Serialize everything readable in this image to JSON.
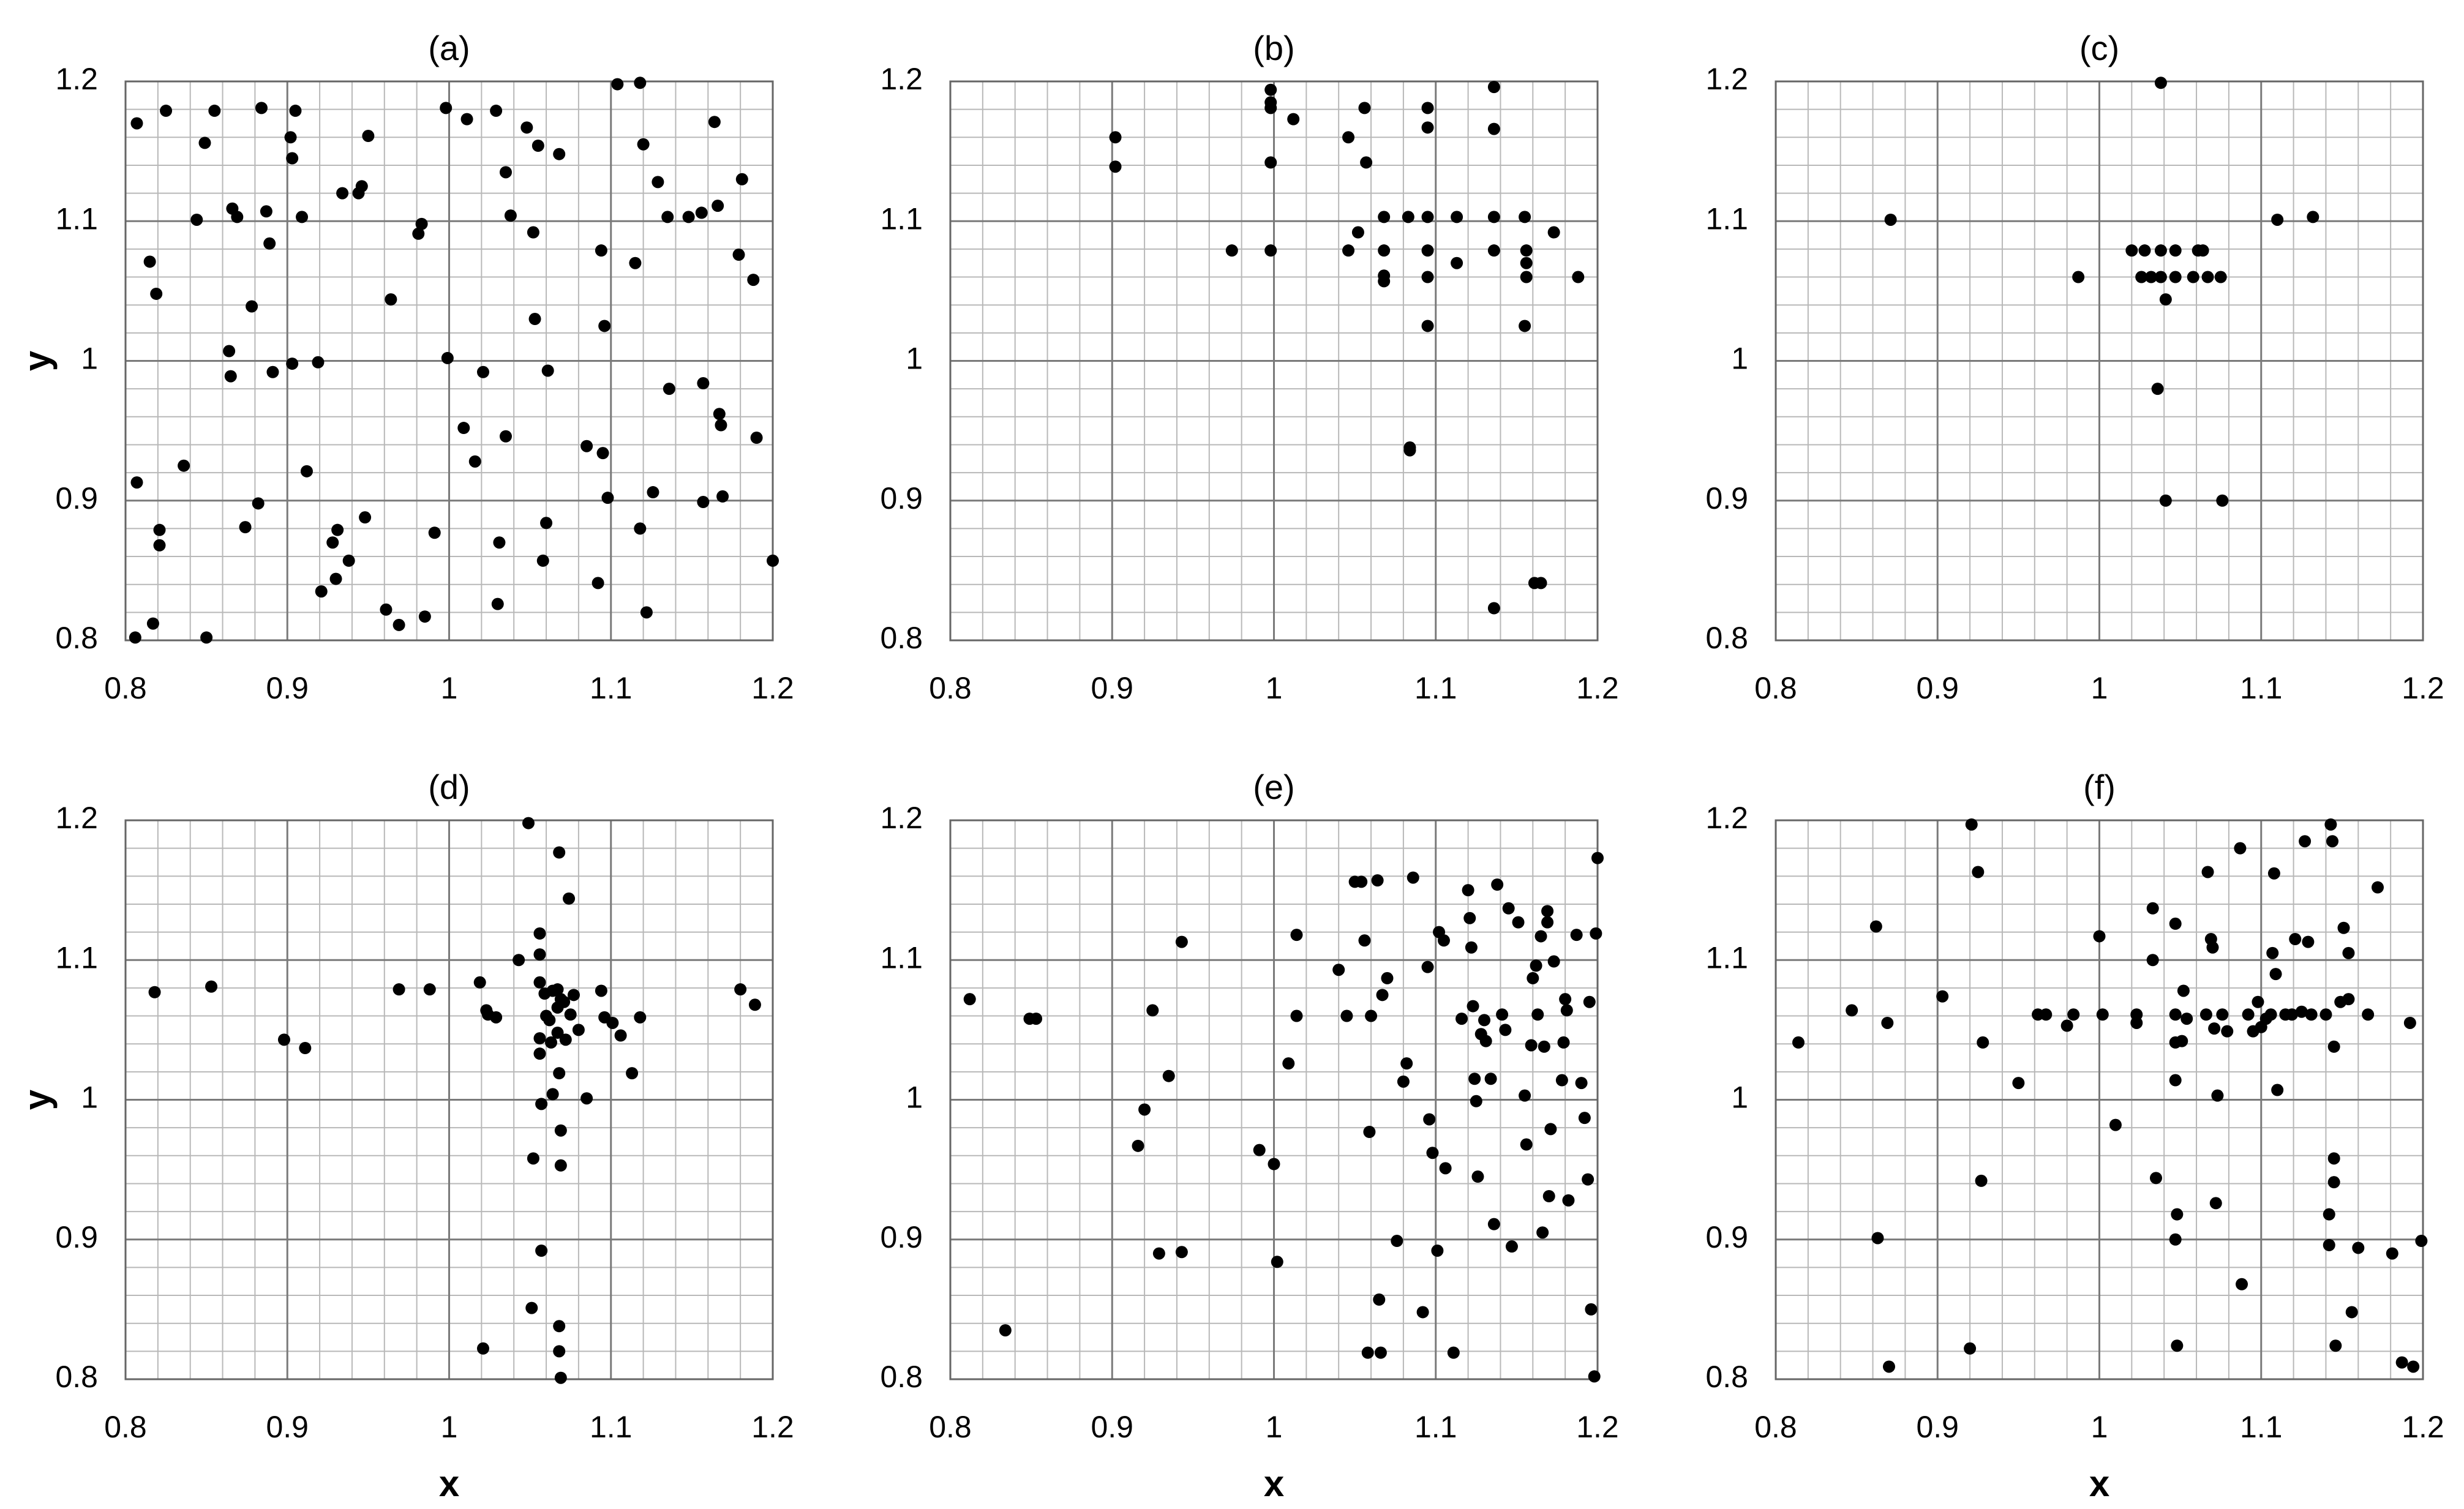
{
  "chart_data": [
    {
      "type": "scatter",
      "title": "(a)",
      "ylabel": "y",
      "color": "#000000",
      "grid": true,
      "xlim": [
        0.8,
        1.2
      ],
      "ylim": [
        0.8,
        1.2
      ],
      "xticks": [
        0.8,
        0.9,
        1,
        1.1,
        1.2
      ],
      "yticks": [
        0.8,
        0.9,
        1,
        1.1,
        1.2
      ],
      "x": [
        0.807,
        0.806,
        0.815,
        0.819,
        0.821,
        0.821,
        0.825,
        0.817,
        0.807,
        0.836,
        0.844,
        0.85,
        0.849,
        0.855,
        0.864,
        0.865,
        0.866,
        0.869,
        0.874,
        0.878,
        0.882,
        0.884,
        0.887,
        0.889,
        0.891,
        0.902,
        0.903,
        0.903,
        0.905,
        0.909,
        0.912,
        0.919,
        0.921,
        0.928,
        0.93,
        0.931,
        0.934,
        0.938,
        0.944,
        0.946,
        0.948,
        0.95,
        0.961,
        0.964,
        0.969,
        0.981,
        0.983,
        0.985,
        0.991,
        0.998,
        0.999,
        1.009,
        1.011,
        1.016,
        1.021,
        1.029,
        1.03,
        1.031,
        1.035,
        1.035,
        1.038,
        1.048,
        1.052,
        1.053,
        1.055,
        1.058,
        1.06,
        1.061,
        1.068,
        1.085,
        1.092,
        1.094,
        1.095,
        1.096,
        1.098,
        1.104,
        1.115,
        1.118,
        1.118,
        1.12,
        1.122,
        1.126,
        1.129,
        1.136,
        1.135,
        1.148,
        1.156,
        1.157,
        1.157,
        1.164,
        1.166,
        1.167,
        1.168,
        1.169,
        1.181,
        1.179,
        1.188,
        1.19,
        1.2
      ],
      "y": [
        1.17,
        0.802,
        1.071,
        1.048,
        0.879,
        0.868,
        1.179,
        0.812,
        0.913,
        0.925,
        1.101,
        0.802,
        1.156,
        1.179,
        1.007,
        0.989,
        1.109,
        1.103,
        0.881,
        1.039,
        0.898,
        1.181,
        1.107,
        1.084,
        0.992,
        1.16,
        1.145,
        0.998,
        1.179,
        1.103,
        0.921,
        0.999,
        0.835,
        0.87,
        0.844,
        0.879,
        1.12,
        0.857,
        1.12,
        1.125,
        0.888,
        1.161,
        0.822,
        1.044,
        0.811,
        1.091,
        1.098,
        0.817,
        0.877,
        1.181,
        1.002,
        0.952,
        1.173,
        0.928,
        0.992,
        1.179,
        0.826,
        0.87,
        0.946,
        1.135,
        1.104,
        1.167,
        1.092,
        1.03,
        1.154,
        0.857,
        0.884,
        0.993,
        1.148,
        0.939,
        0.841,
        1.079,
        0.934,
        1.025,
        0.902,
        1.198,
        1.07,
        1.199,
        0.88,
        1.155,
        0.82,
        0.906,
        1.128,
        0.98,
        1.103,
        1.103,
        1.106,
        0.899,
        0.984,
        1.171,
        1.111,
        0.962,
        0.954,
        0.903,
        1.13,
        1.076,
        1.058,
        0.945,
        0.857
      ]
    },
    {
      "type": "scatter",
      "title": "(b)",
      "color": "#000000",
      "grid": true,
      "xlim": [
        0.8,
        1.2
      ],
      "ylim": [
        0.8,
        1.2
      ],
      "xticks": [
        0.8,
        0.9,
        1,
        1.1,
        1.2
      ],
      "yticks": [
        0.8,
        0.9,
        1,
        1.1,
        1.2
      ],
      "x": [
        0.902,
        0.902,
        0.998,
        0.998,
        0.998,
        0.998,
        0.998,
        0.974,
        1.012,
        1.046,
        1.046,
        1.052,
        1.056,
        1.057,
        1.068,
        1.068,
        1.068,
        1.068,
        1.083,
        1.084,
        1.084,
        1.095,
        1.095,
        1.095,
        1.095,
        1.095,
        1.095,
        1.113,
        1.113,
        1.136,
        1.136,
        1.136,
        1.136,
        1.136,
        1.155,
        1.156,
        1.156,
        1.156,
        1.155,
        1.161,
        1.165,
        1.173,
        1.188
      ],
      "y": [
        1.16,
        1.139,
        1.194,
        1.185,
        1.181,
        1.142,
        1.079,
        1.079,
        1.173,
        1.16,
        1.079,
        1.092,
        1.181,
        1.142,
        1.103,
        1.079,
        1.061,
        1.057,
        1.103,
        0.938,
        0.936,
        1.103,
        1.079,
        1.06,
        1.025,
        1.167,
        1.181,
        1.103,
        1.07,
        1.196,
        1.166,
        1.103,
        1.079,
        0.823,
        1.103,
        1.079,
        1.07,
        1.06,
        1.025,
        0.841,
        0.841,
        1.092,
        1.06
      ]
    },
    {
      "type": "scatter",
      "title": "(c)",
      "color": "#000000",
      "grid": true,
      "xlim": [
        0.8,
        1.2
      ],
      "ylim": [
        0.8,
        1.2
      ],
      "xticks": [
        0.8,
        0.9,
        1,
        1.1,
        1.2
      ],
      "yticks": [
        0.8,
        0.9,
        1,
        1.1,
        1.2
      ],
      "x": [
        0.871,
        1.038,
        0.987,
        1.02,
        1.028,
        1.038,
        1.047,
        1.061,
        1.064,
        1.026,
        1.032,
        1.038,
        1.047,
        1.058,
        1.067,
        1.075,
        1.041,
        1.036,
        1.041,
        1.076,
        1.11,
        1.132
      ],
      "y": [
        1.101,
        1.199,
        1.06,
        1.079,
        1.079,
        1.079,
        1.079,
        1.079,
        1.079,
        1.06,
        1.06,
        1.06,
        1.06,
        1.06,
        1.06,
        1.06,
        1.044,
        0.98,
        0.9,
        0.9,
        1.101,
        1.103
      ]
    },
    {
      "type": "scatter",
      "title": "(d)",
      "xlabel": "x",
      "ylabel": "y",
      "color": "#000000",
      "grid": true,
      "xlim": [
        0.8,
        1.2
      ],
      "ylim": [
        0.8,
        1.2
      ],
      "xticks": [
        0.8,
        0.9,
        1,
        1.1,
        1.2
      ],
      "yticks": [
        0.8,
        0.9,
        1,
        1.1,
        1.2
      ],
      "x": [
        0.818,
        0.853,
        0.898,
        0.911,
        0.969,
        0.988,
        1.019,
        1.023,
        1.024,
        1.029,
        1.043,
        1.049,
        1.021,
        1.051,
        1.056,
        1.056,
        1.056,
        1.056,
        1.056,
        1.057,
        1.052,
        1.057,
        1.059,
        1.06,
        1.062,
        1.064,
        1.064,
        1.067,
        1.067,
        1.067,
        1.068,
        1.068,
        1.068,
        1.068,
        1.069,
        1.069,
        1.069,
        1.071,
        1.072,
        1.074,
        1.075,
        1.077,
        1.08,
        1.085,
        1.094,
        1.096,
        1.101,
        1.106,
        1.113,
        1.118,
        1.18,
        1.189,
        1.069,
        1.063
      ],
      "y": [
        1.077,
        1.081,
        1.043,
        1.037,
        1.079,
        1.079,
        1.084,
        1.064,
        1.061,
        1.059,
        1.1,
        1.198,
        0.822,
        0.851,
        1.119,
        1.104,
        1.084,
        1.044,
        1.033,
        0.997,
        0.958,
        0.892,
        1.076,
        1.06,
        1.057,
        1.078,
        1.004,
        1.079,
        1.066,
        1.048,
        1.177,
        1.019,
        0.838,
        0.82,
        0.801,
        0.978,
        0.953,
        1.07,
        1.043,
        1.144,
        1.061,
        1.075,
        1.05,
        1.001,
        1.078,
        1.059,
        1.055,
        1.046,
        1.019,
        1.059,
        1.079,
        1.068,
        1.072,
        1.041
      ]
    },
    {
      "type": "scatter",
      "title": "(e)",
      "xlabel": "x",
      "color": "#000000",
      "grid": true,
      "xlim": [
        0.8,
        1.2
      ],
      "ylim": [
        0.8,
        1.2
      ],
      "xticks": [
        0.8,
        0.9,
        1,
        1.1,
        1.2
      ],
      "yticks": [
        0.8,
        0.9,
        1,
        1.1,
        1.2
      ],
      "x": [
        0.812,
        0.834,
        0.849,
        0.853,
        0.916,
        0.92,
        0.925,
        0.929,
        0.935,
        0.943,
        0.943,
        0.991,
        1.0,
        1.002,
        1.009,
        1.014,
        1.014,
        1.04,
        1.045,
        1.05,
        1.054,
        1.056,
        1.059,
        1.06,
        1.064,
        1.065,
        1.066,
        1.058,
        1.067,
        1.07,
        1.076,
        1.08,
        1.082,
        1.086,
        1.092,
        1.095,
        1.096,
        1.098,
        1.101,
        1.102,
        1.105,
        1.106,
        1.111,
        1.116,
        1.12,
        1.121,
        1.122,
        1.123,
        1.124,
        1.125,
        1.126,
        1.128,
        1.13,
        1.131,
        1.134,
        1.136,
        1.138,
        1.141,
        1.143,
        1.145,
        1.147,
        1.151,
        1.155,
        1.156,
        1.159,
        1.16,
        1.162,
        1.163,
        1.165,
        1.166,
        1.167,
        1.169,
        1.169,
        1.17,
        1.171,
        1.173,
        1.178,
        1.179,
        1.18,
        1.181,
        1.182,
        1.187,
        1.19,
        1.192,
        1.194,
        1.195,
        1.196,
        1.198,
        1.199,
        1.2
      ],
      "y": [
        1.072,
        0.835,
        1.058,
        1.058,
        0.967,
        0.993,
        1.064,
        0.89,
        1.017,
        0.891,
        1.113,
        0.964,
        0.954,
        0.884,
        1.026,
        1.118,
        1.06,
        1.093,
        1.06,
        1.156,
        1.156,
        1.114,
        0.977,
        1.06,
        1.157,
        0.857,
        0.819,
        0.819,
        1.075,
        1.087,
        0.899,
        1.013,
        1.026,
        1.159,
        0.848,
        1.095,
        0.986,
        0.962,
        0.892,
        1.12,
        1.114,
        0.951,
        0.819,
        1.058,
        1.15,
        1.13,
        1.109,
        1.067,
        1.015,
        0.999,
        0.945,
        1.047,
        1.057,
        1.042,
        1.015,
        0.911,
        1.154,
        1.061,
        1.05,
        1.137,
        0.895,
        1.127,
        1.003,
        0.968,
        1.039,
        1.087,
        1.096,
        1.061,
        1.117,
        0.905,
        1.038,
        1.127,
        1.135,
        0.931,
        0.979,
        1.099,
        1.014,
        1.041,
        1.072,
        1.064,
        0.928,
        1.118,
        1.012,
        0.987,
        0.943,
        1.07,
        0.85,
        0.802,
        1.119,
        1.173
      ]
    },
    {
      "type": "scatter",
      "title": "(f)",
      "xlabel": "x",
      "color": "#000000",
      "grid": true,
      "xlim": [
        0.8,
        1.2
      ],
      "ylim": [
        0.8,
        1.2
      ],
      "xticks": [
        0.8,
        0.9,
        1,
        1.1,
        1.2
      ],
      "yticks": [
        0.8,
        0.9,
        1,
        1.1,
        1.2
      ],
      "x": [
        0.814,
        0.847,
        0.862,
        0.863,
        0.869,
        0.87,
        0.903,
        0.92,
        0.921,
        0.925,
        0.927,
        0.928,
        0.95,
        0.962,
        0.967,
        0.98,
        0.984,
        1.0,
        1.002,
        1.01,
        1.023,
        1.023,
        1.033,
        1.033,
        1.035,
        1.047,
        1.047,
        1.047,
        1.047,
        1.047,
        1.048,
        1.048,
        1.051,
        1.052,
        1.054,
        1.066,
        1.067,
        1.069,
        1.07,
        1.071,
        1.072,
        1.073,
        1.076,
        1.079,
        1.087,
        1.088,
        1.092,
        1.095,
        1.098,
        1.1,
        1.103,
        1.106,
        1.107,
        1.108,
        1.109,
        1.11,
        1.115,
        1.119,
        1.121,
        1.125,
        1.127,
        1.129,
        1.131,
        1.14,
        1.143,
        1.144,
        1.145,
        1.145,
        1.145,
        1.146,
        1.149,
        1.151,
        1.154,
        1.154,
        1.156,
        1.142,
        1.142,
        1.166,
        1.172,
        1.181,
        1.187,
        1.192,
        1.194,
        1.199,
        1.16
      ],
      "y": [
        1.041,
        1.064,
        1.124,
        0.901,
        1.055,
        0.809,
        1.074,
        0.822,
        1.197,
        1.163,
        0.942,
        1.041,
        1.012,
        1.061,
        1.061,
        1.053,
        1.061,
        1.117,
        1.061,
        0.982,
        1.061,
        1.055,
        1.137,
        1.1,
        0.944,
        1.126,
        1.061,
        1.041,
        1.014,
        0.9,
        0.918,
        0.824,
        1.042,
        1.078,
        1.058,
        1.061,
        1.163,
        1.115,
        1.109,
        1.051,
        0.926,
        1.003,
        1.061,
        1.049,
        1.18,
        0.868,
        1.061,
        1.049,
        1.07,
        1.052,
        1.058,
        1.061,
        1.105,
        1.162,
        1.09,
        1.007,
        1.061,
        1.061,
        1.115,
        1.063,
        1.185,
        1.113,
        1.061,
        1.061,
        1.197,
        1.185,
        1.038,
        0.958,
        0.941,
        0.824,
        1.07,
        1.123,
        1.105,
        1.072,
        0.848,
        0.918,
        0.896,
        1.061,
        1.152,
        0.89,
        0.812,
        1.055,
        0.809,
        0.899,
        0.894
      ]
    }
  ]
}
